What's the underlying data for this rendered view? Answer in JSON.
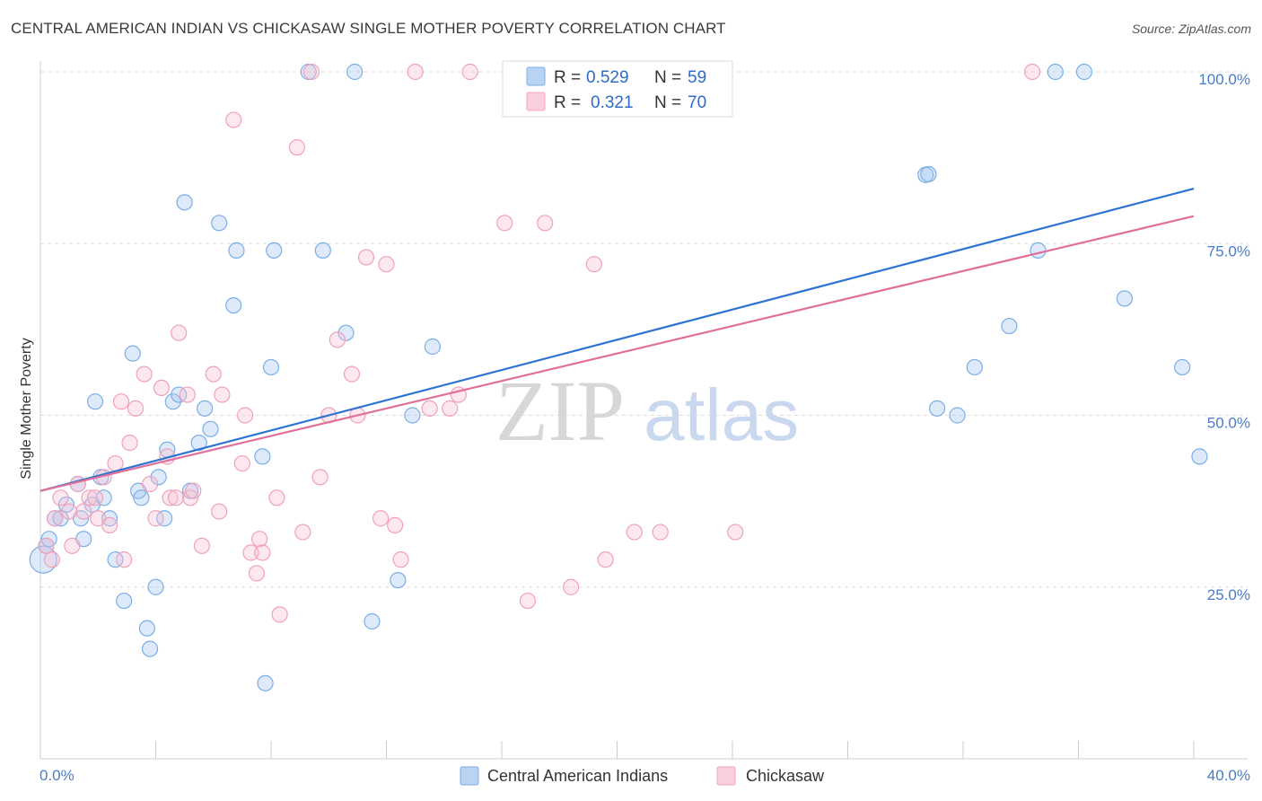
{
  "header": {
    "title": "CENTRAL AMERICAN INDIAN VS CHICKASAW SINGLE MOTHER POVERTY CORRELATION CHART",
    "source": "Source: ZipAtlas.com"
  },
  "watermark": {
    "zip": "ZIP",
    "atlas": "atlas"
  },
  "legend": {
    "r_label": "R =",
    "n_label": "N =",
    "series": [
      {
        "name": "Central American Indians",
        "r": "0.529",
        "n": "59",
        "color": "#7aaee8",
        "line_color": "#2f74d0"
      },
      {
        "name": "Chickasaw",
        "r": "0.321",
        "n": "70",
        "color": "#f4a3bc",
        "line_color": "#e0709a"
      }
    ]
  },
  "chart_data": {
    "type": "scatter",
    "title": "CENTRAL AMERICAN INDIAN VS CHICKASAW SINGLE MOTHER POVERTY CORRELATION CHART",
    "xlabel": "",
    "ylabel": "Single Mother Poverty",
    "xlim": [
      0,
      40
    ],
    "ylim": [
      0,
      105
    ],
    "x_tick_labels": [
      "0.0%",
      "40.0%"
    ],
    "y_ticks": [
      25,
      50,
      75,
      100
    ],
    "y_tick_labels": [
      "25.0%",
      "50.0%",
      "75.0%",
      "100.0%"
    ],
    "grid": true,
    "series": [
      {
        "name": "Central American Indians",
        "trendline": {
          "x": [
            0,
            40
          ],
          "y": [
            39,
            83
          ]
        },
        "points": [
          [
            0.1,
            29
          ],
          [
            0.2,
            31
          ],
          [
            0.3,
            32
          ],
          [
            0.5,
            35
          ],
          [
            0.7,
            35
          ],
          [
            0.9,
            37
          ],
          [
            1.3,
            40
          ],
          [
            1.4,
            35
          ],
          [
            1.5,
            32
          ],
          [
            1.8,
            37
          ],
          [
            1.9,
            52
          ],
          [
            2.1,
            41
          ],
          [
            2.2,
            38
          ],
          [
            2.4,
            35
          ],
          [
            2.6,
            29
          ],
          [
            2.9,
            23
          ],
          [
            3.2,
            59
          ],
          [
            3.4,
            39
          ],
          [
            3.5,
            38
          ],
          [
            3.7,
            19
          ],
          [
            3.8,
            16
          ],
          [
            4.0,
            25
          ],
          [
            4.1,
            41
          ],
          [
            4.3,
            35
          ],
          [
            4.4,
            45
          ],
          [
            4.6,
            52
          ],
          [
            4.8,
            53
          ],
          [
            5.0,
            81
          ],
          [
            5.2,
            39
          ],
          [
            5.5,
            46
          ],
          [
            5.7,
            51
          ],
          [
            5.9,
            48
          ],
          [
            6.2,
            78
          ],
          [
            6.7,
            66
          ],
          [
            6.8,
            74
          ],
          [
            7.7,
            44
          ],
          [
            7.8,
            11
          ],
          [
            8.0,
            57
          ],
          [
            8.1,
            74
          ],
          [
            9.3,
            100
          ],
          [
            9.8,
            74
          ],
          [
            10.6,
            62
          ],
          [
            10.9,
            100
          ],
          [
            11.5,
            20
          ],
          [
            12.4,
            26
          ],
          [
            12.9,
            50
          ],
          [
            13.6,
            60
          ],
          [
            30.7,
            85
          ],
          [
            30.8,
            85.1
          ],
          [
            31.1,
            51
          ],
          [
            31.8,
            50
          ],
          [
            32.4,
            57
          ],
          [
            33.6,
            63
          ],
          [
            34.6,
            74
          ],
          [
            35.2,
            100
          ],
          [
            36.2,
            100
          ],
          [
            37.6,
            67
          ],
          [
            39.6,
            57
          ],
          [
            40.2,
            44
          ]
        ]
      },
      {
        "name": "Chickasaw",
        "trendline": {
          "x": [
            0,
            40
          ],
          "y": [
            39,
            79
          ]
        },
        "points": [
          [
            0.2,
            31
          ],
          [
            0.4,
            29
          ],
          [
            0.5,
            35
          ],
          [
            0.7,
            38
          ],
          [
            1.0,
            36
          ],
          [
            1.1,
            31
          ],
          [
            1.3,
            40
          ],
          [
            1.5,
            36
          ],
          [
            1.7,
            38
          ],
          [
            1.9,
            38
          ],
          [
            2.0,
            35
          ],
          [
            2.2,
            41
          ],
          [
            2.4,
            34
          ],
          [
            2.6,
            43
          ],
          [
            2.8,
            52
          ],
          [
            2.9,
            29
          ],
          [
            3.1,
            46
          ],
          [
            3.3,
            51
          ],
          [
            3.6,
            56
          ],
          [
            3.8,
            40
          ],
          [
            4.0,
            35
          ],
          [
            4.2,
            54
          ],
          [
            4.4,
            44
          ],
          [
            4.5,
            38
          ],
          [
            4.7,
            38
          ],
          [
            4.8,
            62
          ],
          [
            5.1,
            53
          ],
          [
            5.2,
            38
          ],
          [
            5.3,
            39
          ],
          [
            5.6,
            31
          ],
          [
            6.0,
            56
          ],
          [
            6.2,
            36
          ],
          [
            6.3,
            53
          ],
          [
            6.7,
            93
          ],
          [
            7.0,
            43
          ],
          [
            7.1,
            50
          ],
          [
            7.3,
            30
          ],
          [
            7.5,
            27
          ],
          [
            7.6,
            32
          ],
          [
            7.7,
            30
          ],
          [
            8.2,
            38
          ],
          [
            8.3,
            21
          ],
          [
            8.9,
            89
          ],
          [
            9.1,
            33
          ],
          [
            9.4,
            100
          ],
          [
            9.7,
            41
          ],
          [
            10.0,
            50
          ],
          [
            10.3,
            61
          ],
          [
            10.8,
            56
          ],
          [
            11.0,
            50
          ],
          [
            11.3,
            73
          ],
          [
            11.8,
            35
          ],
          [
            12.0,
            72
          ],
          [
            12.3,
            34
          ],
          [
            12.5,
            29
          ],
          [
            13.0,
            100
          ],
          [
            13.5,
            51
          ],
          [
            14.2,
            51
          ],
          [
            14.5,
            53
          ],
          [
            14.9,
            100
          ],
          [
            16.1,
            78
          ],
          [
            16.9,
            23
          ],
          [
            17.5,
            78
          ],
          [
            18.4,
            25
          ],
          [
            19.2,
            72
          ],
          [
            19.6,
            29
          ],
          [
            20.6,
            33
          ],
          [
            21.5,
            33
          ],
          [
            24.1,
            33
          ],
          [
            34.4,
            100
          ]
        ]
      }
    ]
  }
}
